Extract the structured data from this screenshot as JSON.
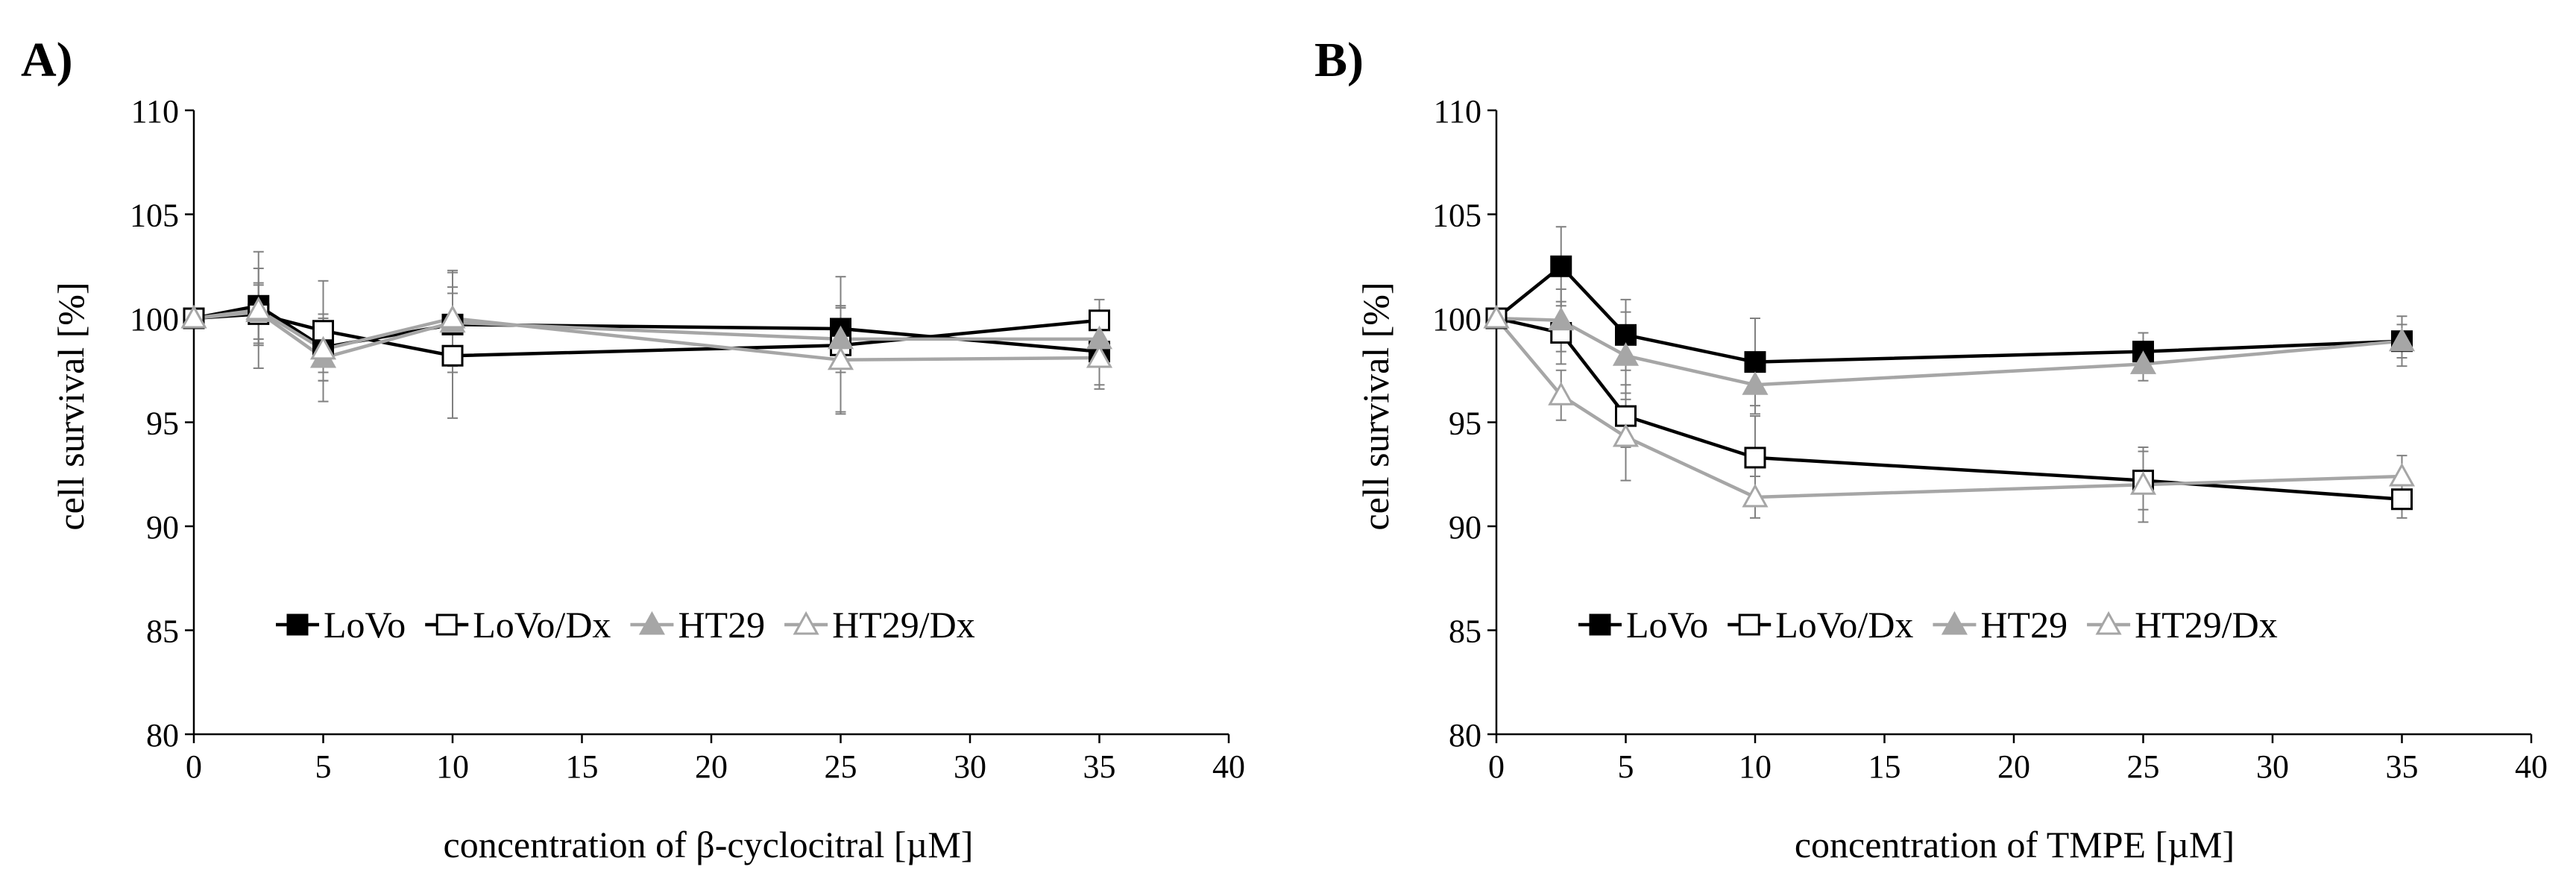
{
  "chart_data": [
    {
      "type": "line",
      "panel_label": "A)",
      "xlabel": "concentration of β-cyclocitral [µM]",
      "ylabel": "cell survival [%]",
      "xlim": [
        0,
        40
      ],
      "ylim": [
        80,
        110
      ],
      "xticks": [
        0,
        5,
        10,
        15,
        20,
        25,
        30,
        35,
        40
      ],
      "yticks": [
        80,
        85,
        90,
        95,
        100,
        105,
        110
      ],
      "legend_position": "lower-center",
      "x": [
        0,
        2.5,
        5,
        10,
        25,
        35
      ],
      "series": [
        {
          "name": "LoVo",
          "marker": "filled-square",
          "color": "#000000",
          "values": [
            100,
            100.6,
            98.6,
            99.7,
            99.5,
            98.4
          ],
          "errors": [
            0,
            1.8,
            1.2,
            1.8,
            1.1,
            1.6
          ]
        },
        {
          "name": "LoVo/Dx",
          "marker": "open-square",
          "color": "#000000",
          "values": [
            100,
            100.2,
            99.4,
            98.2,
            98.7,
            99.9
          ],
          "errors": [
            0,
            1.5,
            2.4,
            3.0,
            3.3,
            1.0
          ]
        },
        {
          "name": "HT29",
          "marker": "filled-triangle",
          "color": "#a6a6a6",
          "values": [
            100,
            100.3,
            98.1,
            99.8,
            99.0,
            99.0
          ],
          "errors": [
            0,
            1.3,
            2.1,
            2.4,
            1.6,
            1.0
          ]
        },
        {
          "name": "HT29/Dx",
          "marker": "open-triangle",
          "color": "#a6a6a6",
          "values": [
            100,
            100.4,
            98.5,
            100.0,
            98.0,
            98.1
          ],
          "errors": [
            0,
            2.8,
            1.5,
            2.3,
            2.5,
            1.5
          ]
        }
      ]
    },
    {
      "type": "line",
      "panel_label": "B)",
      "xlabel": "concentration of TMPE [µM]",
      "ylabel": "cell survival [%]",
      "xlim": [
        0,
        40
      ],
      "ylim": [
        80,
        110
      ],
      "xticks": [
        0,
        5,
        10,
        15,
        20,
        25,
        30,
        35,
        40
      ],
      "yticks": [
        80,
        85,
        90,
        95,
        100,
        105,
        110
      ],
      "legend_position": "lower-center",
      "x": [
        0,
        2.5,
        5,
        10,
        25,
        35
      ],
      "series": [
        {
          "name": "LoVo",
          "marker": "filled-square",
          "color": "#000000",
          "values": [
            100,
            102.5,
            99.2,
            97.9,
            98.4,
            98.9
          ],
          "errors": [
            0,
            1.9,
            1.7,
            2.1,
            0.9,
            0.8
          ]
        },
        {
          "name": "LoVo/Dx",
          "marker": "open-square",
          "color": "#000000",
          "values": [
            100,
            99.3,
            95.3,
            93.3,
            92.2,
            91.3
          ],
          "errors": [
            0,
            1.5,
            1.5,
            2.0,
            1.4,
            0.9
          ]
        },
        {
          "name": "HT29",
          "marker": "filled-triangle",
          "color": "#a6a6a6",
          "values": [
            100,
            99.9,
            98.2,
            96.8,
            97.8,
            98.9
          ],
          "errors": [
            0,
            1.5,
            2.1,
            1.4,
            0.8,
            1.2
          ]
        },
        {
          "name": "HT29/Dx",
          "marker": "open-triangle",
          "color": "#a6a6a6",
          "values": [
            100,
            96.3,
            94.3,
            91.4,
            92.0,
            92.4
          ],
          "errors": [
            0,
            1.2,
            2.1,
            1.0,
            1.8,
            1.0
          ]
        }
      ]
    }
  ]
}
